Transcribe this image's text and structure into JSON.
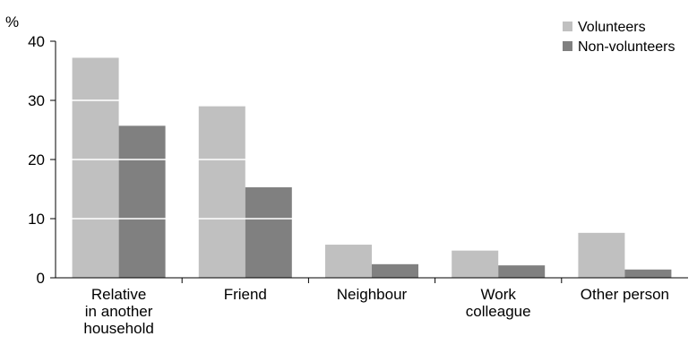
{
  "chart_data": {
    "type": "bar",
    "ylabel": "%",
    "ylim": [
      0,
      40
    ],
    "yticks": [
      0,
      10,
      20,
      30,
      40
    ],
    "categories": [
      [
        "Relative",
        "in another",
        "household"
      ],
      [
        "Friend"
      ],
      [
        "Neighbour"
      ],
      [
        "Work",
        "colleague"
      ],
      [
        "Other person"
      ]
    ],
    "series": [
      {
        "name": "Volunteers",
        "color": "#c0c0c0",
        "values": [
          37.2,
          29.0,
          5.6,
          4.6,
          7.6
        ]
      },
      {
        "name": "Non-volunteers",
        "color": "#808080",
        "values": [
          25.7,
          15.3,
          2.3,
          2.1,
          1.4
        ]
      }
    ],
    "gridlines": "white, drawn over bars",
    "legend_position": "top-right"
  }
}
